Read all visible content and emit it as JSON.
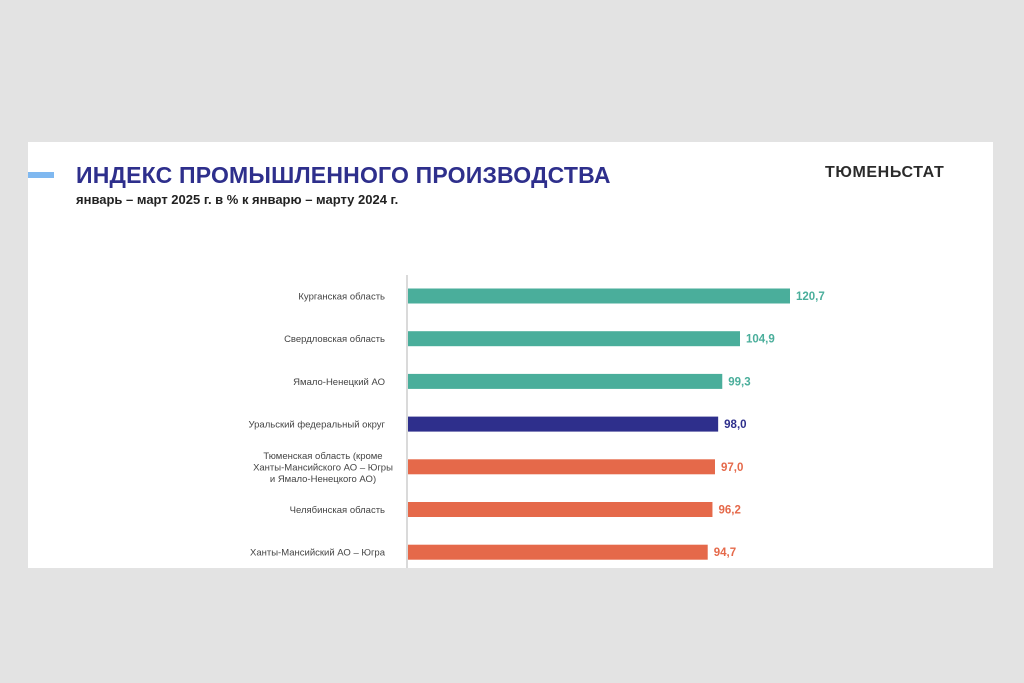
{
  "header": {
    "title": "ИНДЕКС ПРОМЫШЛЕННОГО ПРОИЗВОДСТВА",
    "subtitle": "январь – март 2025 г. в % к январю – марту 2024 г.",
    "logo": "ТЮМЕНЬСТАТ"
  },
  "colors": {
    "above": "#4aae9b",
    "district": "#2e2f8c",
    "below": "#e5694a",
    "title": "#2e2f8c",
    "accent": "#7fb8f0"
  },
  "chart_data": {
    "type": "bar",
    "orientation": "horizontal",
    "title": "ИНДЕКС ПРОМЫШЛЕННОГО ПРОИЗВОДСТВА",
    "subtitle": "январь – март 2025 г. в % к январю – марту 2024 г.",
    "categories": [
      "Курганская область",
      "Свердловская область",
      "Ямало-Ненецкий АО",
      "Уральский федеральный округ",
      "Тюменская область (кроме\nХанты-Мансийского АО – Югры\nи Ямало-Ненецкого АО)",
      "Челябинская область",
      "Ханты-Мансийский АО – Югра"
    ],
    "values": [
      120.7,
      104.9,
      99.3,
      98.0,
      97.0,
      96.2,
      94.7
    ],
    "value_labels": [
      "120,7",
      "104,9",
      "99,3",
      "98,0",
      "97,0",
      "96,2",
      "94,7"
    ],
    "groups": [
      "above",
      "above",
      "above",
      "district",
      "below",
      "below",
      "below"
    ],
    "xlim": [
      0,
      120.7
    ],
    "grid": false,
    "legend": "none"
  }
}
